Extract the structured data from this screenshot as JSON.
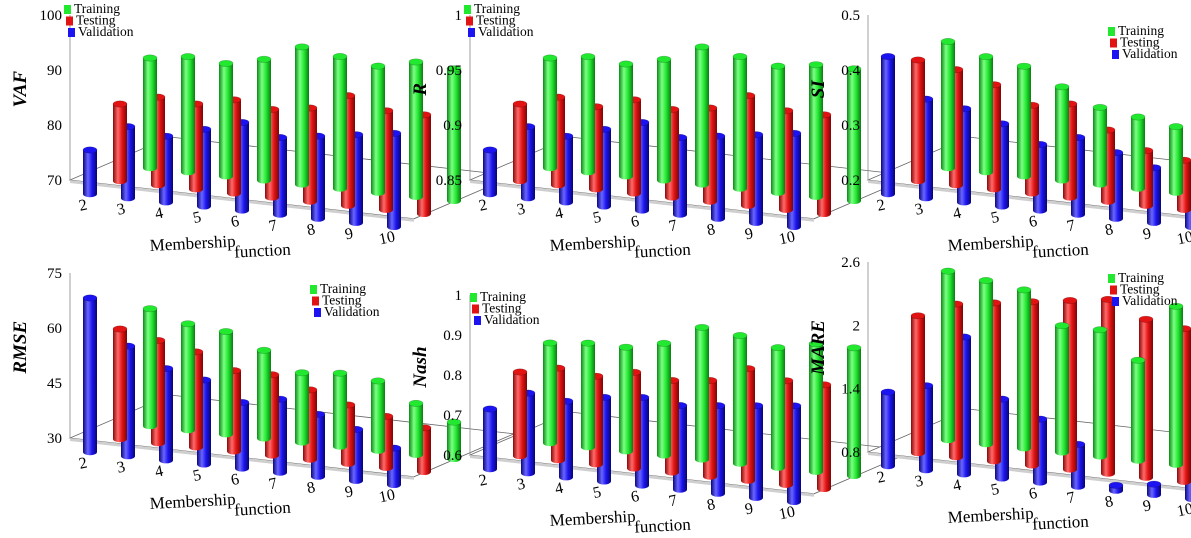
{
  "figure": {
    "legend_labels": [
      "Training",
      "Testing",
      "Validation"
    ],
    "series_colors": {
      "Training": "#22e830",
      "Testing": "#e21313",
      "Validation": "#1c14f0"
    },
    "xlabel_main": "Membership",
    "xlabel_sub": "function"
  },
  "chart_data": [
    {
      "type": "bar",
      "style": "3d-cylinders",
      "ylabel": "VAF",
      "ylim": [
        70,
        100
      ],
      "yticks": [
        "70",
        "80",
        "90",
        "100"
      ],
      "categories": [
        "2",
        "3",
        "4",
        "5",
        "6",
        "7",
        "8",
        "9",
        "10"
      ],
      "legend": "top-left",
      "series": [
        {
          "name": "Training",
          "values": [
            90,
            91,
            90.5,
            92,
            95,
            94,
            93,
            94.5,
            94
          ]
        },
        {
          "name": "Testing",
          "values": [
            84,
            86,
            85.5,
            87,
            86,
            87,
            90,
            88,
            88
          ]
        },
        {
          "name": "Validation",
          "values": [
            78,
            83,
            82,
            84,
            86,
            84,
            85,
            86,
            87
          ]
        }
      ]
    },
    {
      "type": "bar",
      "style": "3d-cylinders",
      "ylabel": "R",
      "ylim": [
        0.85,
        1
      ],
      "yticks": [
        "0.85",
        "0.9",
        "0.95",
        "1"
      ],
      "categories": [
        "2",
        "3",
        "4",
        "5",
        "6",
        "7",
        "8",
        "9",
        "10"
      ],
      "legend": "top-left",
      "series": [
        {
          "name": "Training",
          "values": [
            0.95,
            0.955,
            0.952,
            0.96,
            0.975,
            0.97,
            0.965,
            0.97,
            0.97
          ]
        },
        {
          "name": "Testing",
          "values": [
            0.92,
            0.93,
            0.925,
            0.935,
            0.93,
            0.935,
            0.95,
            0.94,
            0.94
          ]
        },
        {
          "name": "Validation",
          "values": [
            0.89,
            0.915,
            0.91,
            0.92,
            0.93,
            0.92,
            0.925,
            0.93,
            0.935
          ]
        }
      ]
    },
    {
      "type": "bar",
      "style": "3d-cylinders",
      "ylabel": "SI",
      "ylim": [
        0.2,
        0.5
      ],
      "yticks": [
        "0.2",
        "0.3",
        "0.4",
        "0.5"
      ],
      "categories": [
        "2",
        "3",
        "4",
        "5",
        "6",
        "7",
        "8",
        "9",
        "10"
      ],
      "legend": "top-right",
      "series": [
        {
          "name": "Training",
          "values": [
            0.43,
            0.41,
            0.4,
            0.37,
            0.34,
            0.33,
            0.32,
            0.29,
            0.27
          ]
        },
        {
          "name": "Testing",
          "values": [
            0.42,
            0.41,
            0.39,
            0.36,
            0.37,
            0.33,
            0.3,
            0.29,
            0.28
          ]
        },
        {
          "name": "Validation",
          "values": [
            0.45,
            0.38,
            0.37,
            0.35,
            0.32,
            0.34,
            0.32,
            0.3,
            0.28
          ]
        }
      ]
    },
    {
      "type": "bar",
      "style": "3d-cylinders",
      "ylabel": "RMSE",
      "ylim": [
        30,
        75
      ],
      "yticks": [
        "30",
        "45",
        "60",
        "75"
      ],
      "categories": [
        "2",
        "3",
        "4",
        "5",
        "6",
        "7",
        "8",
        "9",
        "10"
      ],
      "legend": "top-right",
      "series": [
        {
          "name": "Training",
          "values": [
            62,
            59,
            58,
            54,
            49,
            50,
            49,
            44,
            40
          ]
        },
        {
          "name": "Testing",
          "values": [
            60,
            58,
            56,
            52,
            52,
            49,
            46,
            44,
            42
          ]
        },
        {
          "name": "Validation",
          "values": [
            72,
            60,
            55,
            53,
            48,
            50,
            47,
            44,
            40
          ]
        }
      ]
    },
    {
      "type": "bar",
      "style": "3d-cylinders",
      "ylabel": "Nash",
      "ylim": [
        0.6,
        1
      ],
      "yticks": [
        "0.6",
        "0.7",
        "0.8",
        "0.9",
        "1"
      ],
      "categories": [
        "2",
        "3",
        "4",
        "5",
        "6",
        "7",
        "8",
        "9",
        "10"
      ],
      "legend": "top-left",
      "series": [
        {
          "name": "Training",
          "values": [
            0.85,
            0.86,
            0.86,
            0.88,
            0.93,
            0.92,
            0.9,
            0.92,
            0.92
          ]
        },
        {
          "name": "Testing",
          "values": [
            0.81,
            0.83,
            0.82,
            0.84,
            0.83,
            0.84,
            0.88,
            0.86,
            0.86
          ]
        },
        {
          "name": "Validation",
          "values": [
            0.75,
            0.8,
            0.79,
            0.81,
            0.82,
            0.81,
            0.82,
            0.83,
            0.84
          ]
        }
      ]
    },
    {
      "type": "bar",
      "style": "3d-cylinders",
      "ylabel": "MARE",
      "ylim": [
        0.8,
        2.6
      ],
      "yticks": [
        "0.8",
        "1.4",
        "2",
        "2.6"
      ],
      "categories": [
        "2",
        "3",
        "4",
        "5",
        "6",
        "7",
        "8",
        "9",
        "10"
      ],
      "legend": "top-right",
      "series": [
        {
          "name": "Training",
          "values": [
            2.4,
            2.35,
            2.3,
            2.0,
            2.0,
            1.75,
            2.3,
            2.3,
            2.2
          ]
        },
        {
          "name": "Testing",
          "values": [
            2.1,
            2.25,
            2.3,
            2.35,
            2.4,
            2.45,
            2.3,
            2.25,
            2.0
          ]
        },
        {
          "name": "Validation",
          "values": [
            1.5,
            1.6,
            2.1,
            1.55,
            1.4,
            1.2,
            0.85,
            0.9,
            1.15
          ]
        }
      ]
    }
  ]
}
